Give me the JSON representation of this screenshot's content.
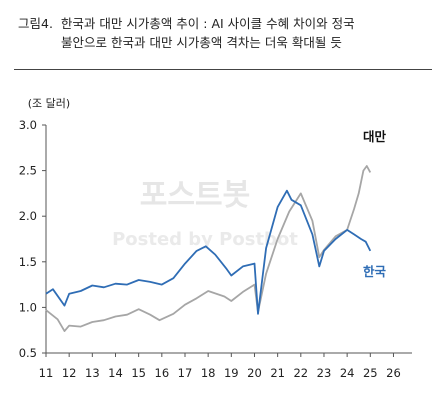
{
  "caption": {
    "number": "그림4.",
    "line1": "한국과 대만 시가총액 추이 : AI 사이클 수혜 차이와 정국",
    "line2": "불안으로 한국과 대만 시가총액 격차는 더욱 확대될 듯"
  },
  "watermark": {
    "line1": "포스트봇",
    "line2": "Posted by Postbot"
  },
  "chart_data": {
    "type": "line",
    "unit_label": "(조 달러)",
    "xlabel": "",
    "ylabel": "",
    "xlim": [
      11,
      26.8
    ],
    "ylim": [
      0.5,
      3.0
    ],
    "x_ticks": [
      "11",
      "12",
      "13",
      "14",
      "15",
      "16",
      "17",
      "18",
      "19",
      "20",
      "21",
      "22",
      "23",
      "24",
      "25",
      "26"
    ],
    "y_ticks": [
      "0.5",
      "1.0",
      "1.5",
      "2.0",
      "2.5",
      "3.0"
    ],
    "grid": false,
    "series": [
      {
        "name": "대만",
        "color": "#a6a6a6",
        "x": [
          11.0,
          11.5,
          11.8,
          12.0,
          12.5,
          13.0,
          13.5,
          14.0,
          14.5,
          15.0,
          15.5,
          15.9,
          16.5,
          17.0,
          17.5,
          18.0,
          18.7,
          19.0,
          19.5,
          20.0,
          20.15,
          20.5,
          21.0,
          21.5,
          22.0,
          22.5,
          22.8,
          23.0,
          23.5,
          24.0,
          24.3,
          24.5,
          24.7,
          24.85,
          25.0
        ],
        "values": [
          0.97,
          0.87,
          0.74,
          0.8,
          0.79,
          0.84,
          0.86,
          0.9,
          0.92,
          0.98,
          0.92,
          0.86,
          0.93,
          1.03,
          1.1,
          1.18,
          1.12,
          1.07,
          1.17,
          1.25,
          0.95,
          1.37,
          1.75,
          2.05,
          2.25,
          1.95,
          1.55,
          1.63,
          1.78,
          1.85,
          2.08,
          2.25,
          2.5,
          2.55,
          2.48
        ]
      },
      {
        "name": "한국",
        "color": "#2f6db5",
        "x": [
          11.0,
          11.3,
          11.8,
          12.0,
          12.5,
          13.0,
          13.5,
          14.0,
          14.5,
          15.0,
          15.5,
          16.0,
          16.5,
          17.0,
          17.5,
          17.9,
          18.3,
          18.8,
          19.0,
          19.5,
          20.0,
          20.15,
          20.5,
          21.0,
          21.4,
          21.6,
          22.0,
          22.5,
          22.8,
          23.0,
          23.5,
          24.0,
          24.3,
          24.6,
          24.8,
          25.0
        ],
        "values": [
          1.15,
          1.2,
          1.02,
          1.15,
          1.18,
          1.24,
          1.22,
          1.26,
          1.25,
          1.3,
          1.28,
          1.25,
          1.32,
          1.48,
          1.62,
          1.67,
          1.58,
          1.42,
          1.35,
          1.45,
          1.48,
          0.93,
          1.65,
          2.1,
          2.28,
          2.18,
          2.12,
          1.8,
          1.45,
          1.62,
          1.75,
          1.85,
          1.8,
          1.75,
          1.72,
          1.62
        ]
      }
    ]
  }
}
